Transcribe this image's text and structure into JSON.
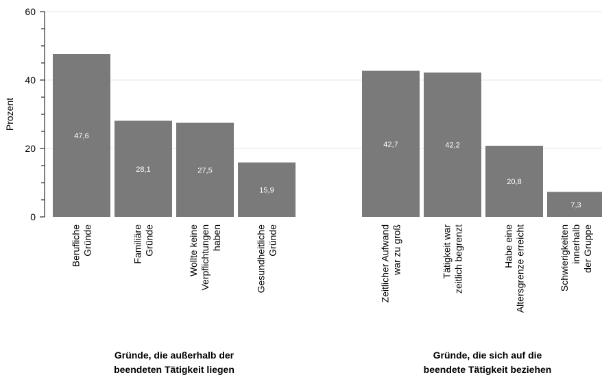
{
  "chart_data": {
    "type": "bar",
    "ylabel": "Prozent",
    "ylim": [
      0,
      60
    ],
    "yticks": [
      "0",
      "20",
      "40",
      "60"
    ],
    "grid": true,
    "categories": [
      [
        "Berufliche",
        "Gründe"
      ],
      [
        "Familiäre",
        "Gründe"
      ],
      [
        "Wollte keine",
        "Verpflichtungen",
        "haben"
      ],
      [
        "Gesundheitliche",
        "Gründe"
      ],
      [
        "Zeitlicher Aufwand",
        "war zu groß"
      ],
      [
        "Tätigkeit war",
        "zeitlich begrenzt"
      ],
      [
        "Habe eine",
        "Altersgrenze erreicht"
      ],
      [
        "Schwierigkeiten",
        "innerhalb",
        "der Gruppe"
      ]
    ],
    "values": [
      47.6,
      28.1,
      27.5,
      15.9,
      42.7,
      42.2,
      20.8,
      7.3
    ],
    "value_labels": [
      "47,6",
      "28,1",
      "27,5",
      "15,9",
      "42,7",
      "42,2",
      "20,8",
      "7,3"
    ],
    "groups": [
      {
        "lines": [
          "Gründe, die außerhalb der",
          "beendeten Tätigkeit liegen"
        ]
      },
      {
        "lines": [
          "Gründe, die sich auf die",
          "beendete Tätigkeit beziehen"
        ]
      }
    ],
    "colors": {
      "bar": "#7a7a7a",
      "value_text": "#ffffff",
      "grid": "#e6e6e6",
      "axis": "#000000"
    }
  }
}
